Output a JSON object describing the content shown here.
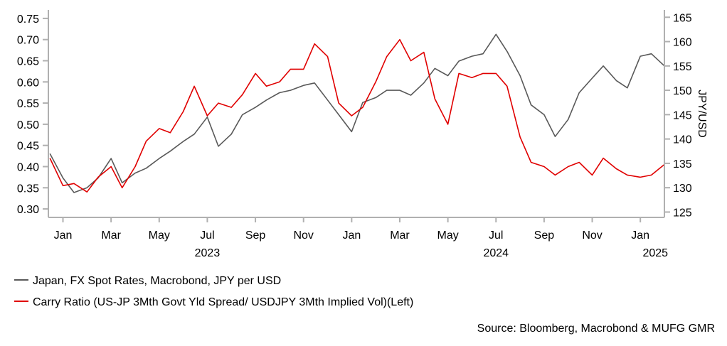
{
  "chart_data": {
    "type": "line",
    "title": "",
    "x_range": [
      "2022-12-13",
      "2025-02-01"
    ],
    "x_ticks": [
      {
        "date": "2023-01-01",
        "label": "Jan"
      },
      {
        "date": "2023-03-01",
        "label": "Mar"
      },
      {
        "date": "2023-05-01",
        "label": "May"
      },
      {
        "date": "2023-07-01",
        "label": "Jul"
      },
      {
        "date": "2023-09-01",
        "label": "Sep"
      },
      {
        "date": "2023-11-01",
        "label": "Nov"
      },
      {
        "date": "2024-01-01",
        "label": "Jan"
      },
      {
        "date": "2024-03-01",
        "label": "Mar"
      },
      {
        "date": "2024-05-01",
        "label": "May"
      },
      {
        "date": "2024-07-01",
        "label": "Jul"
      },
      {
        "date": "2024-09-01",
        "label": "Sep"
      },
      {
        "date": "2024-11-01",
        "label": "Nov"
      },
      {
        "date": "2025-01-01",
        "label": "Jan"
      }
    ],
    "year_labels": [
      {
        "date": "2023-07-01",
        "label": "2023"
      },
      {
        "date": "2024-07-01",
        "label": "2024"
      },
      {
        "date": "2025-01-20",
        "label": "2025"
      }
    ],
    "left_axis": {
      "label": "",
      "ylim": [
        0.28,
        0.77
      ],
      "ticks": [
        "0.30",
        "0.35",
        "0.40",
        "0.45",
        "0.50",
        "0.55",
        "0.60",
        "0.65",
        "0.70",
        "0.75"
      ]
    },
    "right_axis": {
      "label": "JPY/USD",
      "ylim": [
        123.9,
        166.5
      ],
      "ticks": [
        "125",
        "130",
        "135",
        "140",
        "145",
        "150",
        "155",
        "160",
        "165"
      ]
    },
    "x": [
      "2022-12-15",
      "2023-01-01",
      "2023-01-15",
      "2023-02-01",
      "2023-02-15",
      "2023-03-01",
      "2023-03-15",
      "2023-04-01",
      "2023-04-15",
      "2023-05-01",
      "2023-05-15",
      "2023-06-01",
      "2023-06-15",
      "2023-07-01",
      "2023-07-15",
      "2023-08-01",
      "2023-08-15",
      "2023-09-01",
      "2023-09-15",
      "2023-10-01",
      "2023-10-15",
      "2023-11-01",
      "2023-11-15",
      "2023-12-01",
      "2023-12-15",
      "2024-01-01",
      "2024-01-15",
      "2024-02-01",
      "2024-02-15",
      "2024-03-01",
      "2024-03-15",
      "2024-04-01",
      "2024-04-15",
      "2024-05-01",
      "2024-05-15",
      "2024-06-01",
      "2024-06-15",
      "2024-07-01",
      "2024-07-15",
      "2024-08-01",
      "2024-08-15",
      "2024-09-01",
      "2024-09-15",
      "2024-10-01",
      "2024-10-15",
      "2024-11-01",
      "2024-11-15",
      "2024-12-01",
      "2024-12-15",
      "2025-01-01",
      "2025-01-15",
      "2025-02-01"
    ],
    "series": [
      {
        "name": "Japan, FX Spot Rates, Macrobond, JPY per USD",
        "axis": "right",
        "color": "#595959",
        "values": [
          137,
          132,
          129,
          130,
          132,
          136,
          131,
          133,
          134,
          136,
          137.5,
          139.5,
          141,
          144.5,
          138.5,
          141,
          145,
          146.5,
          148,
          149.5,
          150,
          151,
          151.5,
          148,
          145,
          141.5,
          147.5,
          148.5,
          150,
          150,
          149,
          151.5,
          154.5,
          153,
          156,
          157,
          157.5,
          161.5,
          158,
          153,
          147,
          145,
          140.5,
          144,
          149.5,
          152.5,
          155,
          152,
          150.5,
          157,
          157.5,
          155
        ]
      },
      {
        "name": "Carry Ratio (US-JP 3Mth Govt Yld Spread/ USDJPY 3Mth Implied Vol)(Left)",
        "axis": "left",
        "color": "#e00000",
        "values": [
          0.42,
          0.355,
          0.36,
          0.34,
          0.375,
          0.4,
          0.35,
          0.4,
          0.46,
          0.49,
          0.48,
          0.53,
          0.59,
          0.52,
          0.55,
          0.54,
          0.57,
          0.62,
          0.59,
          0.6,
          0.63,
          0.63,
          0.69,
          0.66,
          0.55,
          0.52,
          0.54,
          0.6,
          0.66,
          0.7,
          0.65,
          0.67,
          0.56,
          0.5,
          0.62,
          0.61,
          0.62,
          0.62,
          0.59,
          0.47,
          0.41,
          0.4,
          0.38,
          0.4,
          0.41,
          0.38,
          0.42,
          0.395,
          0.38,
          0.375,
          0.38,
          0.405
        ]
      }
    ],
    "legend_placement": "bottom-left",
    "source": "Source: Bloomberg, Macrobond & MUFG GMR",
    "grid": false
  }
}
